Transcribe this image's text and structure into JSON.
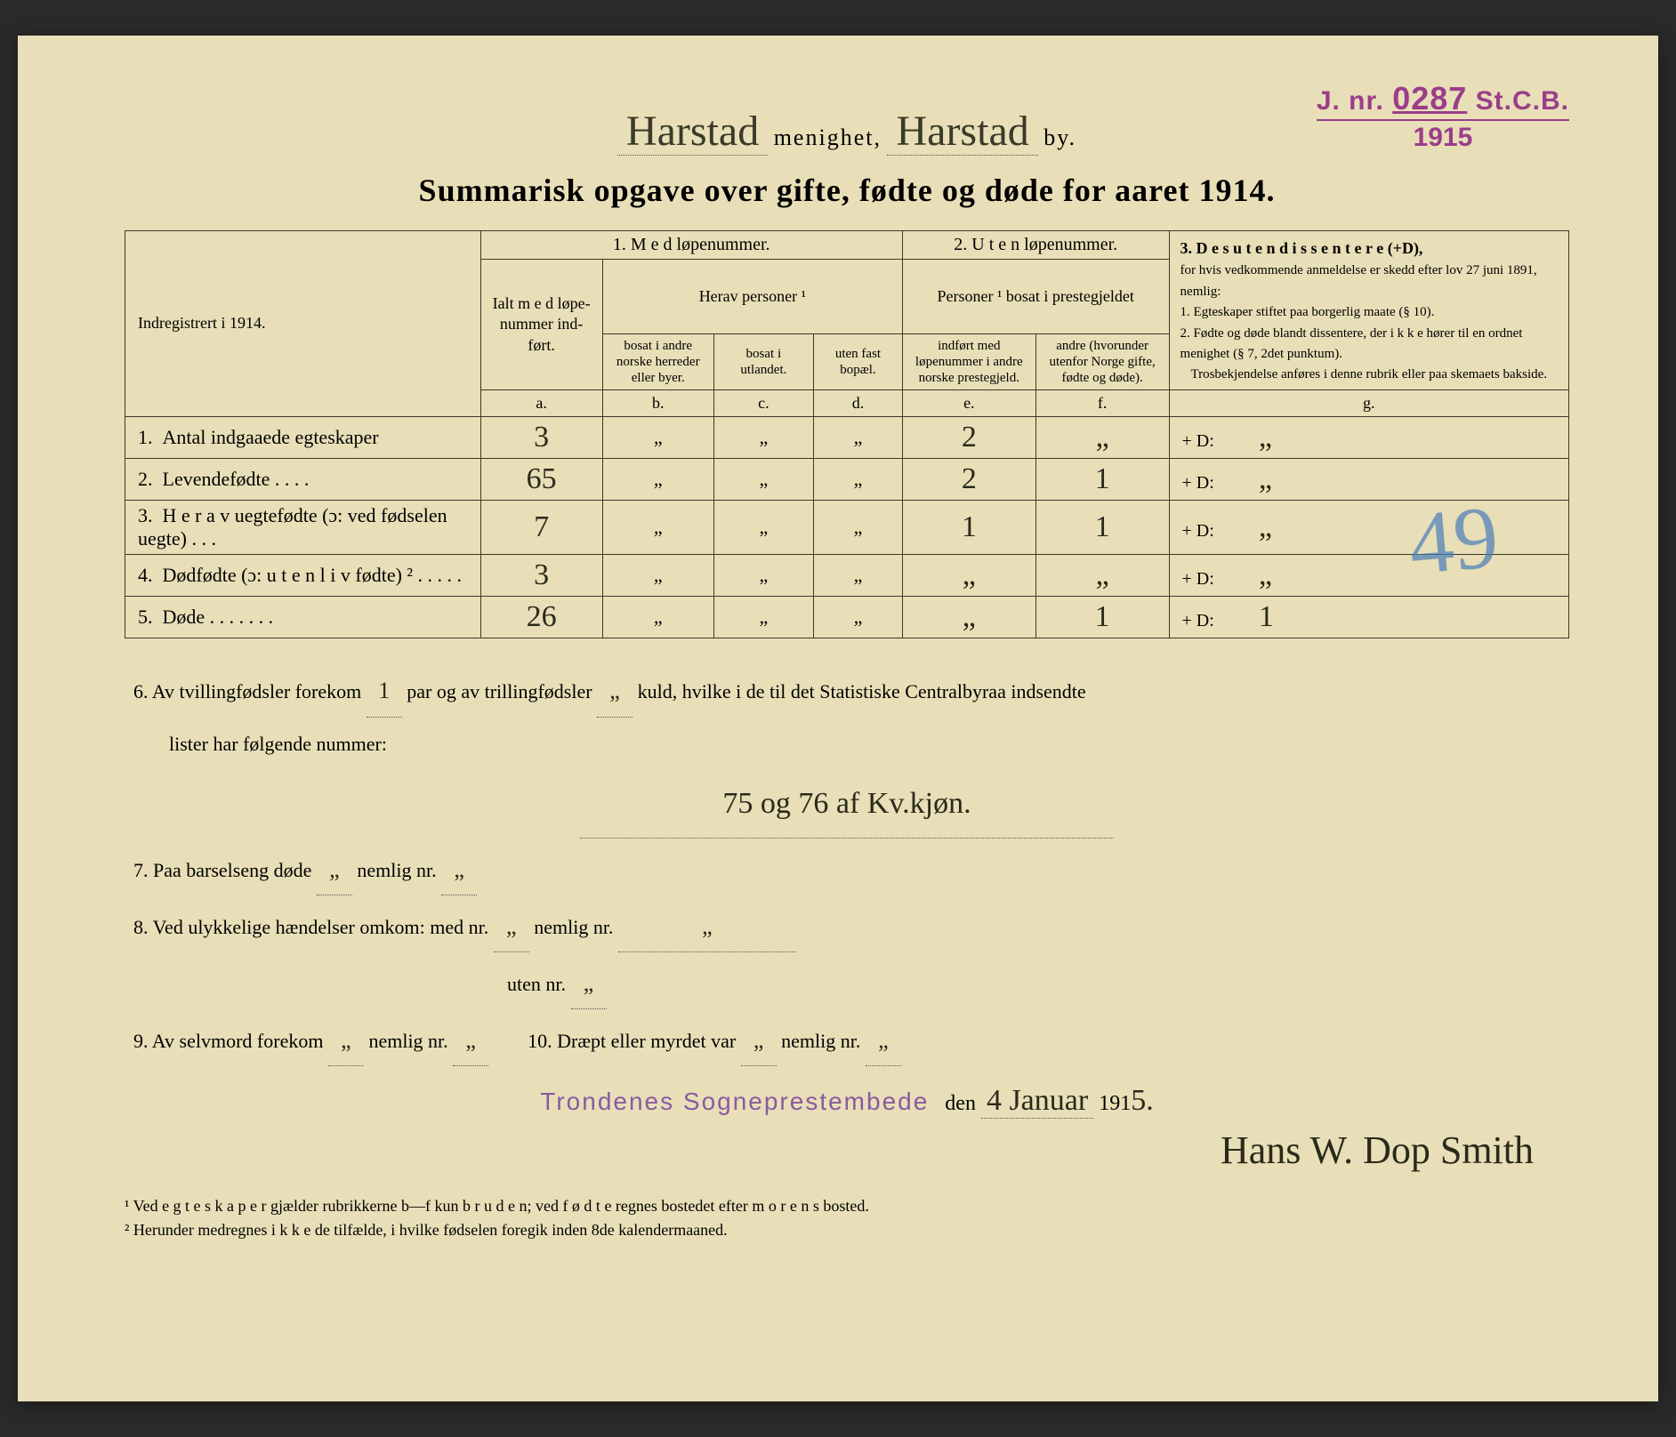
{
  "stamp": {
    "prefix": "J. nr.",
    "number": "0287",
    "suffix": "St.C.B.",
    "year": "1915"
  },
  "header": {
    "parish_handwritten": "Harstad",
    "label_menighet": "menighet,",
    "city_handwritten": "Harstad",
    "label_by": "by."
  },
  "title": "Summarisk opgave over gifte, fødte og døde for aaret 1914.",
  "blue_mark": "49",
  "table": {
    "left_header": "Indregistrert i 1914.",
    "sec1_title": "1.  M e d  løpenummer.",
    "sec1_ialt": "Ialt m e d løpe-nummer ind-ført.",
    "sec1_herav": "Herav personer ¹",
    "col_b": "bosat i andre norske herreder eller byer.",
    "col_c": "bosat i utlandet.",
    "col_d": "uten fast bopæl.",
    "sec2_title": "2. U t e n løpenummer.",
    "sec2_sub": "Personer ¹ bosat i prestegjeldet",
    "col_e": "indført med løpenummer i andre norske prestegjeld.",
    "col_f": "andre (hvorunder utenfor Norge gifte, fødte og døde).",
    "sec3_title": "3. D e s u t e n  d i s s e n t e r e (+D),",
    "sec3_body": "for hvis vedkommende anmeldelse er skedd efter lov 27 juni 1891, nemlig:\n1. Egteskaper stiftet paa borgerlig maate (§ 10).\n2. Fødte og døde blandt dissentere, der i k k e hører til en ordnet menighet (§ 7, 2det punktum).",
    "sec3_foot": "Trosbekjendelse anføres i denne rubrik eller paa skemaets bakside.",
    "letters": {
      "a": "a.",
      "b": "b.",
      "c": "c.",
      "d": "d.",
      "e": "e.",
      "f": "f.",
      "g": "g."
    },
    "rows": [
      {
        "num": "1.",
        "label": "Antal indgaaede egteskaper",
        "a": "3",
        "b": "„",
        "c": "„",
        "d": "„",
        "e": "2",
        "f": "„",
        "g": "+ D:",
        "gval": "„"
      },
      {
        "num": "2.",
        "label": "Levendefødte  .   .   .   .",
        "a": "65",
        "b": "„",
        "c": "„",
        "d": "„",
        "e": "2",
        "f": "1",
        "g": "+ D:",
        "gval": "„"
      },
      {
        "num": "3.",
        "label": "H e r a v uegtefødte (ɔ: ved fødselen uegte)  .  .  .",
        "a": "7",
        "b": "„",
        "c": "„",
        "d": "„",
        "e": "1",
        "f": "1",
        "g": "+ D:",
        "gval": "„"
      },
      {
        "num": "4.",
        "label": "Dødfødte (ɔ: u t e n  l i v fødte) ²  .  .  .  .  .",
        "a": "3",
        "b": "„",
        "c": "„",
        "d": "„",
        "e": "„",
        "f": "„",
        "g": "+ D:",
        "gval": "„"
      },
      {
        "num": "5.",
        "label": "Døde  .  .  .  .  .  .  .",
        "a": "26",
        "b": "„",
        "c": "„",
        "d": "„",
        "e": "„",
        "f": "1",
        "g": "+ D:",
        "gval": "1"
      }
    ]
  },
  "notes": {
    "n6a": "6.   Av tvillingfødsler forekom",
    "n6_twin": "1",
    "n6b": "par og av trillingfødsler",
    "n6_trip": "„",
    "n6c": "kuld, hvilke i de til det Statistiske Centralbyraa indsendte",
    "n6d": "lister har følgende nummer:",
    "n6_hand": "75 og 76 af Kv.kjøn.",
    "n7a": "7.   Paa barselseng døde",
    "n7_v1": "„",
    "n7b": "nemlig nr.",
    "n7_v2": "„",
    "n8a": "8.   Ved ulykkelige hændelser omkom:  med nr.",
    "n8_v1": "„",
    "n8b": "nemlig nr.",
    "n8_v2": "„",
    "n8c": "uten nr.",
    "n8_v3": "„",
    "n9a": "9.   Av selvmord forekom",
    "n9_v1": "„",
    "n9b": "nemlig nr.",
    "n9_v2": "„",
    "n10a": "10.   Dræpt eller myrdet var",
    "n10_v1": "„",
    "n10b": "nemlig nr.",
    "n10_v2": "„"
  },
  "signature_block": {
    "office_stamp": "Trondenes Sogneprestembede",
    "den": "den",
    "date_hand": "4 Januar",
    "year_printed": "191",
    "year_hand": "5.",
    "signature": "Hans W. Dop Smith"
  },
  "footnotes": {
    "f1": "¹ Ved e g t e s k a p e r gjælder rubrikkerne b—f kun b r u d e n; ved f ø d t e regnes bostedet efter m o r e n s bosted.",
    "f2": "² Herunder medregnes i k k e de tilfælde, i hvilke fødselen foregik inden 8de kalendermaaned."
  }
}
